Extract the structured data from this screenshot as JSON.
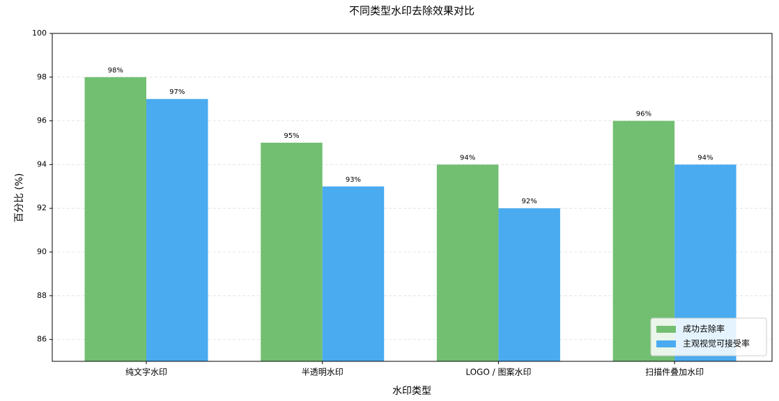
{
  "chart_data": {
    "type": "bar",
    "title": "不同类型水印去除效果对比",
    "x_label": "水印类型",
    "y_label": "百分比 (%)",
    "categories": [
      "纯文字水印",
      "半透明水印",
      "LOGO / 图案水印",
      "扫描件叠加水印"
    ],
    "series": [
      {
        "name": "成功去除率",
        "color": "#72bf72",
        "values": [
          98,
          95,
          94,
          96
        ],
        "value_labels": [
          "98%",
          "95%",
          "94%",
          "96%"
        ]
      },
      {
        "name": "主观视觉可接受率",
        "color": "#4aabf0",
        "values": [
          97,
          93,
          92,
          94
        ],
        "value_labels": [
          "97%",
          "93%",
          "92%",
          "94%"
        ]
      }
    ],
    "ylim": [
      85,
      100
    ],
    "yticks": [
      86,
      88,
      90,
      92,
      94,
      96,
      98,
      100
    ],
    "grid": true,
    "legend": "lower right"
  }
}
